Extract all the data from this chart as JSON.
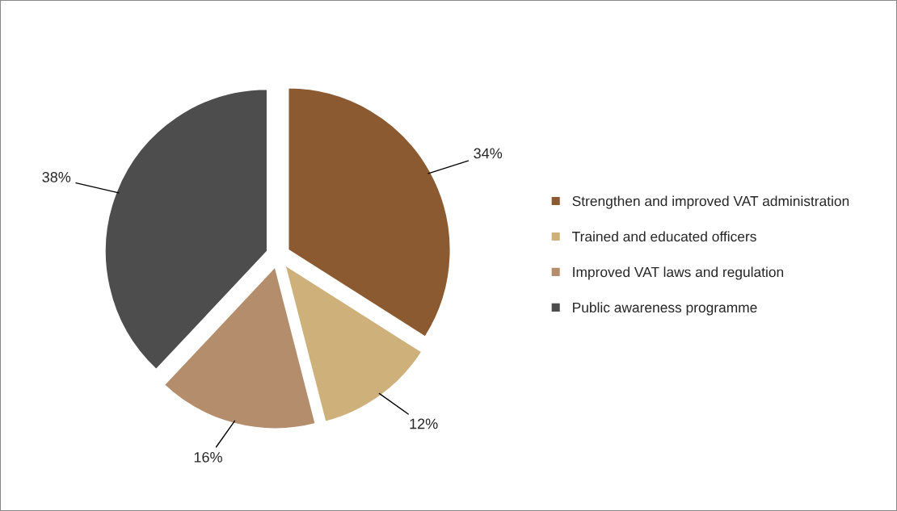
{
  "chart_data": {
    "type": "pie",
    "categories": [
      "Strengthen and improved VAT administration",
      "Trained and educated officers",
      "Improved VAT laws and regulation",
      "Public awareness programme"
    ],
    "values": [
      34,
      12,
      16,
      38
    ],
    "colors": [
      "#8b5a30",
      "#cdb07a",
      "#b48e6c",
      "#4d4d4d"
    ],
    "value_labels": [
      "34%",
      "12%",
      "16%",
      "38%"
    ],
    "legend": "right"
  }
}
